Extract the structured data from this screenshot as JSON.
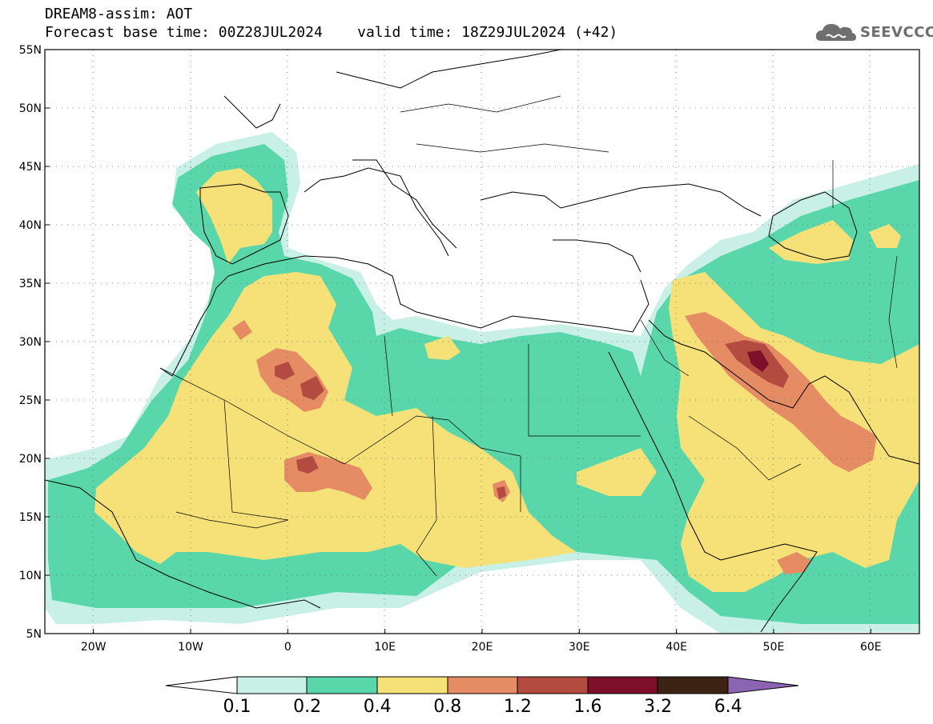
{
  "header": {
    "title": "DREAM8-assim: AOT",
    "subtitle": "Forecast base time: 00Z28JUL2024    valid time: 18Z29JUL2024 (+42)"
  },
  "logo": {
    "text": "SEEVCCC",
    "icon": "cloud-icon"
  },
  "map": {
    "lon_range": [
      -25,
      65
    ],
    "lat_range": [
      5,
      55
    ],
    "lat_labels": [
      "55N",
      "50N",
      "45N",
      "40N",
      "35N",
      "30N",
      "25N",
      "20N",
      "15N",
      "10N",
      "5N"
    ],
    "lon_labels": [
      "20W",
      "10W",
      "0",
      "10E",
      "20E",
      "30E",
      "40E",
      "50E",
      "60E"
    ],
    "grid": "dotted"
  },
  "colorbar": {
    "labels": [
      "0.1",
      "0.2",
      "0.4",
      "0.8",
      "1.2",
      "1.6",
      "3.2",
      "6.4"
    ],
    "colors": {
      "below": "#ffffff",
      "c0": "#c8f0e6",
      "c1": "#5ad7aa",
      "c2": "#f5e178",
      "c3": "#e68c64",
      "c4": "#b44b41",
      "c5": "#7d0f28",
      "c6": "#3c2314",
      "above": "#8c64b4"
    }
  }
}
